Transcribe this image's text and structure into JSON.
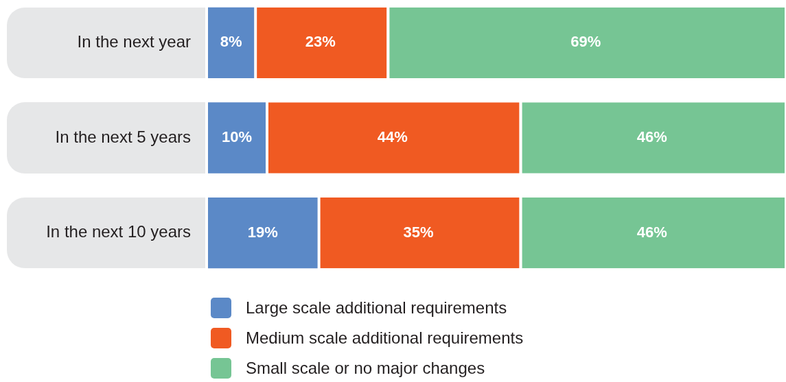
{
  "chart_data": {
    "type": "bar",
    "orientation": "horizontal",
    "stacked": true,
    "categories": [
      "In the next year",
      "In the next 5 years",
      "In the next 10 years"
    ],
    "series": [
      {
        "name": "Large scale additional requirements",
        "color": "#5b89c7",
        "values": [
          8,
          10,
          19
        ],
        "value_labels": [
          "8%",
          "10%",
          "19%"
        ]
      },
      {
        "name": "Medium scale additional requirements",
        "color": "#f05a22",
        "values": [
          23,
          44,
          35
        ],
        "value_labels": [
          "23%",
          "44%",
          "35%"
        ]
      },
      {
        "name": "Small scale or no major changes",
        "color": "#76c594",
        "values": [
          69,
          46,
          46
        ],
        "value_labels": [
          "69%",
          "46%",
          "46%"
        ]
      }
    ],
    "tick_labels": "y",
    "legend": "bottom"
  }
}
